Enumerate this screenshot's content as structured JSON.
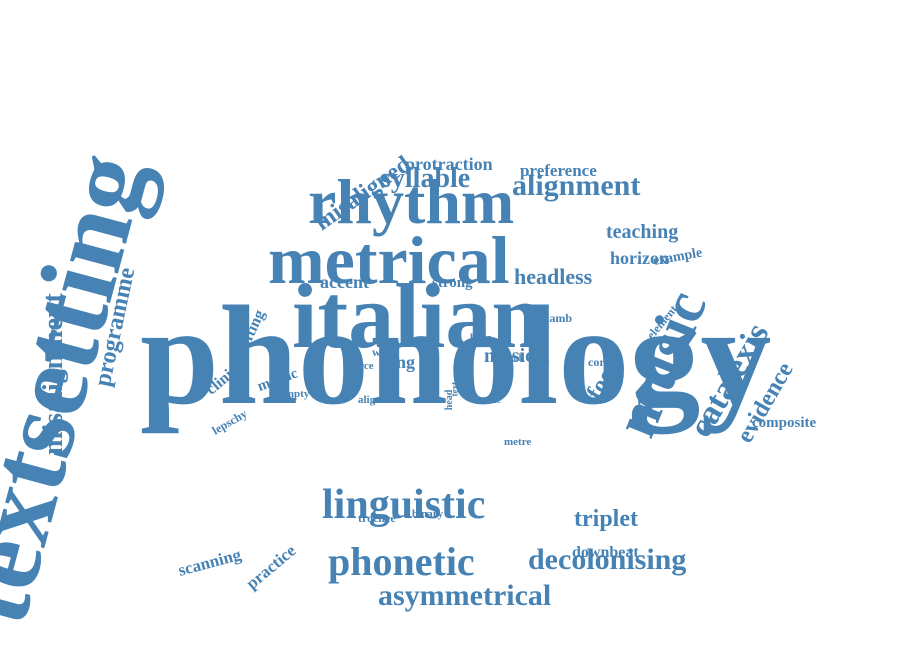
{
  "word_color": "#4682b4",
  "background_color": "#ffffff",
  "words": [
    {
      "id": "phonology",
      "text": "phonology"
    },
    {
      "id": "textsetting",
      "text": "textsetting"
    },
    {
      "id": "italian",
      "text": "italian"
    },
    {
      "id": "metrical",
      "text": "metrical"
    },
    {
      "id": "rhythm",
      "text": "rhythm"
    },
    {
      "id": "music",
      "text": "music"
    },
    {
      "id": "linguistic",
      "text": "linguistic"
    },
    {
      "id": "phonetic",
      "text": "phonetic"
    },
    {
      "id": "catalexis",
      "text": "catalexis"
    },
    {
      "id": "misalignment",
      "text": "misalignment"
    },
    {
      "id": "decolonising",
      "text": "decolonising"
    },
    {
      "id": "asymmetrical",
      "text": "asymmetrical"
    },
    {
      "id": "alignment",
      "text": "alignment"
    },
    {
      "id": "syllable",
      "text": "syllable"
    },
    {
      "id": "misaligned",
      "text": "misaligned"
    },
    {
      "id": "programme",
      "text": "programme"
    },
    {
      "id": "evidence",
      "text": "evidence"
    },
    {
      "id": "triplet",
      "text": "triplet"
    },
    {
      "id": "foot",
      "text": "foot"
    },
    {
      "id": "headless",
      "text": "headless"
    },
    {
      "id": "musical",
      "text": "musical"
    },
    {
      "id": "teaching",
      "text": "teaching"
    },
    {
      "id": "protraction",
      "text": "protraction"
    },
    {
      "id": "preference",
      "text": "preference"
    },
    {
      "id": "horizon",
      "text": "horizon"
    },
    {
      "id": "accent",
      "text": "accent"
    },
    {
      "id": "strong",
      "text": "strong"
    },
    {
      "id": "song",
      "text": "song"
    },
    {
      "id": "scanning",
      "text": "scanning"
    },
    {
      "id": "practice",
      "text": "practice"
    },
    {
      "id": "composite",
      "text": "composite"
    },
    {
      "id": "shifting",
      "text": "shifting"
    },
    {
      "id": "clinical",
      "text": "clinical"
    },
    {
      "id": "metric",
      "text": "metric"
    },
    {
      "id": "lepschy",
      "text": "lepschy"
    },
    {
      "id": "empty",
      "text": "empty"
    },
    {
      "id": "example",
      "text": "example"
    },
    {
      "id": "element",
      "text": "element"
    },
    {
      "id": "iamb",
      "text": "iamb"
    },
    {
      "id": "lyric",
      "text": "lyric"
    },
    {
      "id": "word",
      "text": "word"
    },
    {
      "id": "force",
      "text": "force"
    },
    {
      "id": "weak",
      "text": "weak"
    },
    {
      "id": "corpus",
      "text": "corpus"
    },
    {
      "id": "align",
      "text": "align"
    },
    {
      "id": "head",
      "text": "head"
    },
    {
      "id": "text",
      "text": "text"
    },
    {
      "id": "tune",
      "text": "tune"
    },
    {
      "id": "metre",
      "text": "metre"
    },
    {
      "id": "trochee",
      "text": "trochee"
    },
    {
      "id": "binary",
      "text": "binary"
    },
    {
      "id": "downbeat",
      "text": "downbeat"
    }
  ]
}
